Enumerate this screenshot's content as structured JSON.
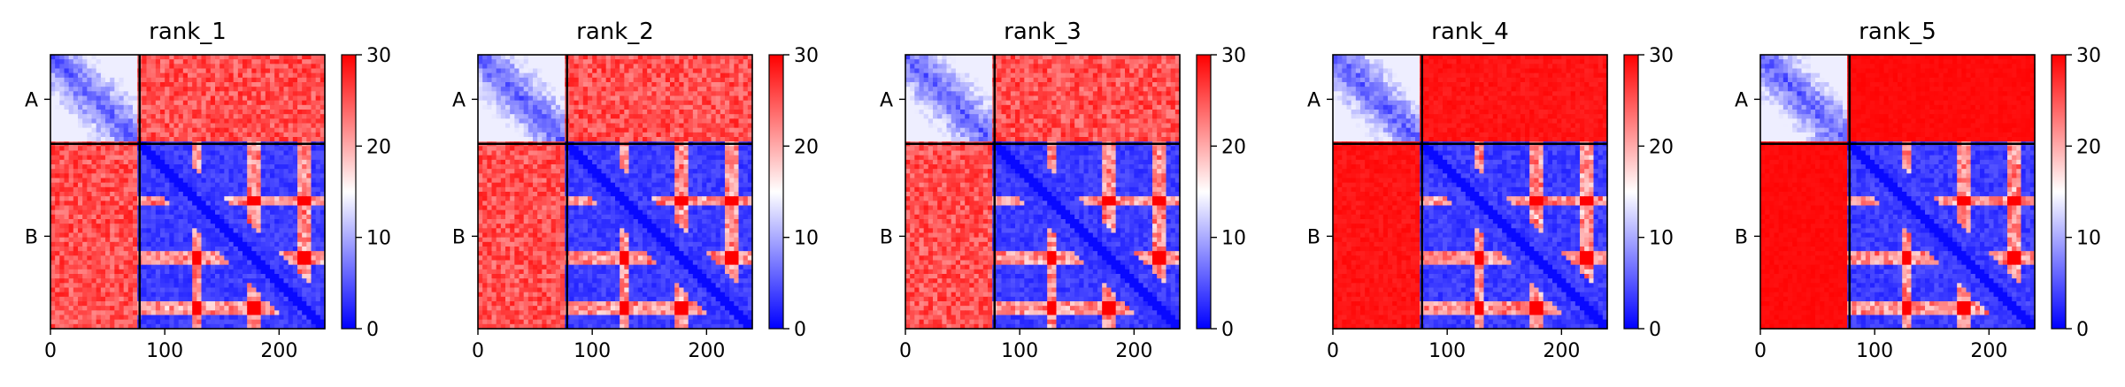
{
  "chart_data": [
    {
      "type": "heatmap",
      "title": "rank_1",
      "chain_labels": [
        "A",
        "B"
      ],
      "chain_boundary": 78,
      "length": 240,
      "xticks": [
        0,
        100,
        200
      ],
      "xlim": [
        0,
        240
      ],
      "colorbar": {
        "ticks": [
          0,
          10,
          20,
          30
        ],
        "range": [
          0,
          30
        ],
        "colormap": [
          "#0000ff",
          "#ffffff",
          "#ff0000"
        ]
      },
      "cross_chain_level": 22
    },
    {
      "type": "heatmap",
      "title": "rank_2",
      "chain_labels": [
        "A",
        "B"
      ],
      "chain_boundary": 78,
      "length": 240,
      "xticks": [
        0,
        100,
        200
      ],
      "xlim": [
        0,
        240
      ],
      "colorbar": {
        "ticks": [
          0,
          10,
          20,
          30
        ],
        "range": [
          0,
          30
        ],
        "colormap": [
          "#0000ff",
          "#ffffff",
          "#ff0000"
        ]
      },
      "cross_chain_level": 22
    },
    {
      "type": "heatmap",
      "title": "rank_3",
      "chain_labels": [
        "A",
        "B"
      ],
      "chain_boundary": 78,
      "length": 240,
      "xticks": [
        0,
        100,
        200
      ],
      "xlim": [
        0,
        240
      ],
      "colorbar": {
        "ticks": [
          0,
          10,
          20,
          30
        ],
        "range": [
          0,
          30
        ],
        "colormap": [
          "#0000ff",
          "#ffffff",
          "#ff0000"
        ]
      },
      "cross_chain_level": 22
    },
    {
      "type": "heatmap",
      "title": "rank_4",
      "chain_labels": [
        "A",
        "B"
      ],
      "chain_boundary": 78,
      "length": 240,
      "xticks": [
        0,
        100,
        200
      ],
      "xlim": [
        0,
        240
      ],
      "colorbar": {
        "ticks": [
          0,
          10,
          20,
          30
        ],
        "range": [
          0,
          30
        ],
        "colormap": [
          "#0000ff",
          "#ffffff",
          "#ff0000"
        ]
      },
      "cross_chain_level": 28
    },
    {
      "type": "heatmap",
      "title": "rank_5",
      "chain_labels": [
        "A",
        "B"
      ],
      "chain_boundary": 78,
      "length": 240,
      "xticks": [
        0,
        100,
        200
      ],
      "xlim": [
        0,
        240
      ],
      "colorbar": {
        "ticks": [
          0,
          10,
          20,
          30
        ],
        "range": [
          0,
          30
        ],
        "colormap": [
          "#0000ff",
          "#ffffff",
          "#ff0000"
        ]
      },
      "cross_chain_level": 29
    }
  ]
}
